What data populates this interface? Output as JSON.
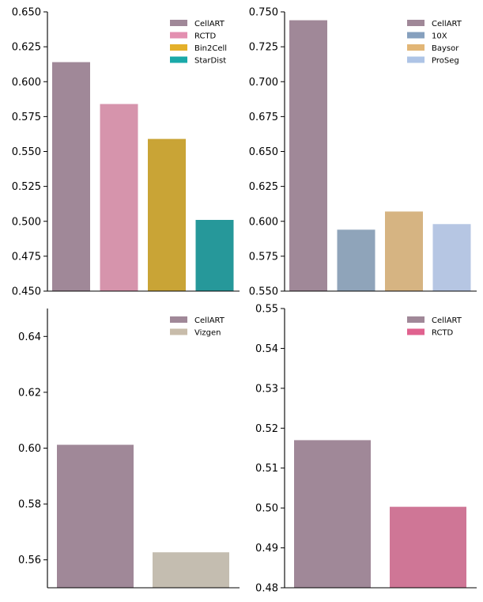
{
  "chart_data": [
    {
      "type": "bar",
      "categories": [
        "CellART",
        "RCTD",
        "Bin2Cell",
        "StarDist"
      ],
      "values": [
        0.614,
        0.584,
        0.559,
        0.501
      ],
      "colors": [
        "#a08898",
        "#d694ac",
        "#c9a436",
        "#26989a"
      ],
      "legend_colors": [
        "#a08898",
        "#e38fb0",
        "#e4b02a",
        "#1aa9a9"
      ],
      "ylim": [
        0.45,
        0.65
      ],
      "yticks": [
        "0.450",
        "0.475",
        "0.500",
        "0.525",
        "0.550",
        "0.575",
        "0.600",
        "0.625",
        "0.650"
      ],
      "legend_position": "top-right",
      "title": "",
      "xlabel": "",
      "ylabel": ""
    },
    {
      "type": "bar",
      "categories": [
        "CellART",
        "10X",
        "Baysor",
        "ProSeg"
      ],
      "values": [
        0.744,
        0.594,
        0.607,
        0.598
      ],
      "colors": [
        "#a08898",
        "#8fa4ba",
        "#d6b482",
        "#b6c6e3"
      ],
      "legend_colors": [
        "#a08898",
        "#86a0be",
        "#e2b676",
        "#aec4e6"
      ],
      "ylim": [
        0.55,
        0.75
      ],
      "yticks": [
        "0.550",
        "0.575",
        "0.600",
        "0.625",
        "0.650",
        "0.675",
        "0.700",
        "0.725",
        "0.750"
      ],
      "legend_position": "top-right",
      "title": "",
      "xlabel": "",
      "ylabel": ""
    },
    {
      "type": "bar",
      "categories": [
        "CellART",
        "Vizgen"
      ],
      "values": [
        0.6012,
        0.5627
      ],
      "colors": [
        "#a08898",
        "#c4bdb0"
      ],
      "legend_colors": [
        "#a08898",
        "#c8bcaa"
      ],
      "ylim": [
        0.55,
        0.65
      ],
      "yticks": [
        "0.56",
        "0.58",
        "0.60",
        "0.62",
        "0.64"
      ],
      "legend_position": "top-right",
      "title": "",
      "xlabel": "",
      "ylabel": ""
    },
    {
      "type": "bar",
      "categories": [
        "CellART",
        "RCTD"
      ],
      "values": [
        0.517,
        0.5003
      ],
      "colors": [
        "#a08898",
        "#cf7696"
      ],
      "legend_colors": [
        "#a08898",
        "#e0628f"
      ],
      "ylim": [
        0.48,
        0.55
      ],
      "yticks": [
        "0.48",
        "0.49",
        "0.50",
        "0.51",
        "0.52",
        "0.53",
        "0.54",
        "0.55"
      ],
      "legend_position": "top-right",
      "title": "",
      "xlabel": "",
      "ylabel": ""
    }
  ]
}
